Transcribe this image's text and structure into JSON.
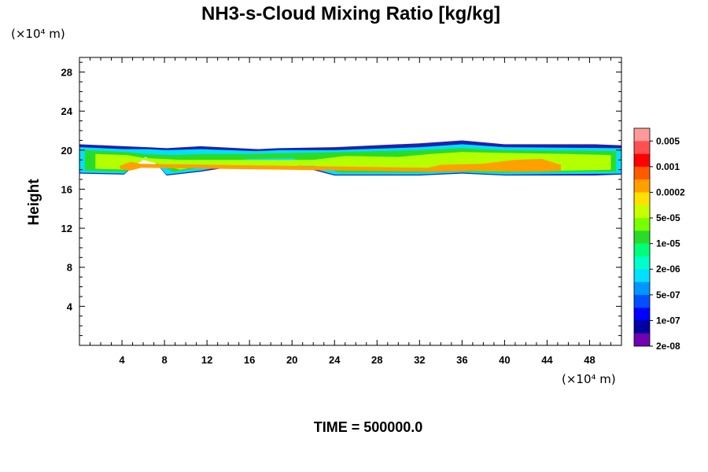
{
  "chart_data": {
    "type": "heatmap",
    "title": "NH3-s-Cloud Mixing Ratio [kg/kg]",
    "xlabel": "",
    "ylabel": "Height",
    "x_unit": "(×10⁴ m)",
    "y_unit": "(×10⁴ m)",
    "xlim": [
      0,
      51
    ],
    "ylim": [
      0,
      29.5
    ],
    "x_ticks": [
      4,
      8,
      12,
      16,
      20,
      24,
      28,
      32,
      36,
      40,
      44,
      48
    ],
    "y_ticks": [
      4,
      8,
      12,
      16,
      20,
      24,
      28
    ],
    "time_label": "TIME = 500000.0",
    "colorbar": {
      "labels": [
        "0.005",
        "0.001",
        "0.0002",
        "5e-05",
        "1e-05",
        "2e-06",
        "5e-07",
        "1e-07",
        "2e-08"
      ],
      "colors": [
        "#ff9a9a",
        "#ff5050",
        "#ff0000",
        "#ff5a00",
        "#ffa000",
        "#ffe000",
        "#c8ff00",
        "#78ff00",
        "#2adc2a",
        "#00ff78",
        "#00ffc8",
        "#00e0ff",
        "#0096ff",
        "#0050ff",
        "#0000ff",
        "#0000a0",
        "#7000b0"
      ]
    },
    "layers": [
      {
        "name": "outer",
        "level": "2e-08",
        "color": "#2020b0",
        "segments": [
          [
            0,
            17.6,
            20.6
          ],
          [
            4.2,
            17.5,
            20.4
          ],
          [
            6.4,
            19.6,
            20.3
          ],
          [
            8.2,
            17.4,
            20.2
          ],
          [
            11.4,
            17.8,
            20.4
          ],
          [
            16.8,
            18.7,
            20.1
          ],
          [
            18.7,
            18.9,
            20.2
          ],
          [
            24.0,
            17.4,
            20.3
          ],
          [
            32.0,
            17.4,
            20.7
          ],
          [
            36.0,
            17.6,
            21.0
          ],
          [
            40.0,
            17.4,
            20.6
          ],
          [
            48.5,
            17.4,
            20.6
          ],
          [
            51.0,
            17.5,
            20.5
          ]
        ]
      },
      {
        "name": "cyan",
        "level": "5e-07",
        "color": "#00e0ff",
        "segments": [
          [
            0,
            17.7,
            20.3
          ],
          [
            4.2,
            17.6,
            20.1
          ],
          [
            6.4,
            19.5,
            20.1
          ],
          [
            8.2,
            17.5,
            20.0
          ],
          [
            11.4,
            17.9,
            20.1
          ],
          [
            16.6,
            18.9,
            19.9
          ],
          [
            18.9,
            19.0,
            20.0
          ],
          [
            24.0,
            17.5,
            20.0
          ],
          [
            32.0,
            17.5,
            20.3
          ],
          [
            36.0,
            17.7,
            20.6
          ],
          [
            40.0,
            17.5,
            20.3
          ],
          [
            51.0,
            17.6,
            20.2
          ]
        ]
      },
      {
        "name": "green",
        "level": "2e-06",
        "color": "#2adc2a",
        "segments": [
          [
            0.5,
            17.9,
            20.0
          ],
          [
            4.4,
            17.8,
            19.8
          ],
          [
            6.2,
            19.3,
            19.6
          ],
          [
            8.8,
            17.8,
            19.5
          ],
          [
            11.6,
            18.2,
            19.6
          ],
          [
            15.8,
            19.1,
            19.6
          ],
          [
            20.0,
            19.2,
            19.7
          ],
          [
            24.5,
            17.7,
            19.8
          ],
          [
            32.0,
            17.7,
            20.0
          ],
          [
            36.0,
            17.8,
            20.2
          ],
          [
            40.0,
            17.7,
            20.0
          ],
          [
            50.5,
            17.8,
            19.9
          ]
        ]
      },
      {
        "name": "yellow-green",
        "level": "5e-05",
        "color": "#b4ff00",
        "segments": [
          [
            1.5,
            18.1,
            19.6
          ],
          [
            4.5,
            18.0,
            19.5
          ],
          [
            6.0,
            19.0,
            19.2
          ],
          [
            9.5,
            18.0,
            19.0
          ],
          [
            11.0,
            18.3,
            19.0
          ],
          [
            22.0,
            18.4,
            19.0
          ],
          [
            25.0,
            17.9,
            19.4
          ],
          [
            30.0,
            18.1,
            19.3
          ],
          [
            33.0,
            17.8,
            19.6
          ],
          [
            36.0,
            17.9,
            19.8
          ],
          [
            41.0,
            17.8,
            19.7
          ],
          [
            46.0,
            17.9,
            19.6
          ],
          [
            50.0,
            18.0,
            19.5
          ]
        ]
      },
      {
        "name": "orange",
        "level": "0.0002",
        "color": "#ffa000",
        "segments": [
          [
            3.8,
            18.1,
            18.4
          ],
          [
            4.8,
            17.9,
            18.8
          ],
          [
            5.8,
            18.2,
            18.6
          ],
          [
            32.8,
            17.8,
            18.2
          ],
          [
            34.0,
            17.8,
            18.5
          ],
          [
            37.8,
            17.9,
            18.6
          ],
          [
            41.0,
            17.8,
            19.0
          ],
          [
            43.5,
            17.8,
            19.1
          ],
          [
            45.3,
            17.9,
            18.5
          ]
        ]
      }
    ]
  }
}
